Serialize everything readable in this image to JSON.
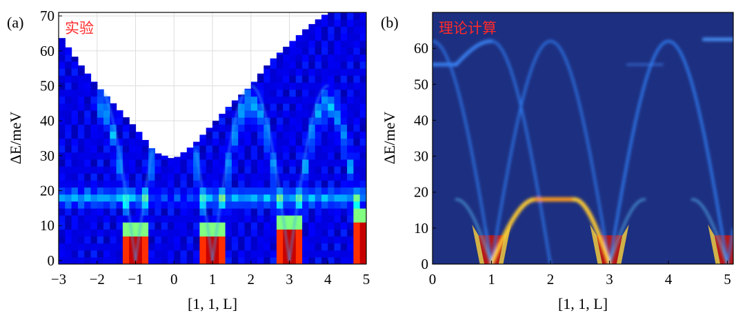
{
  "chart_data": [
    {
      "type": "heatmap",
      "panel_label": "(a)",
      "annotation": "实验",
      "xlabel": "[1, 1, L]",
      "ylabel": "ΔE/meV",
      "xlim": [
        -3,
        5
      ],
      "ylim": [
        -1,
        71
      ],
      "xticks": [
        "−3",
        "−2",
        "−1",
        "0",
        "1",
        "2",
        "3",
        "4",
        "5"
      ],
      "yticks": [
        "0",
        "10",
        "20",
        "30",
        "40",
        "50",
        "60",
        "70"
      ],
      "grid": true,
      "colormap": "jet",
      "intensity_peaks": [
        {
          "L": -1,
          "E_max": 8
        },
        {
          "L": 1,
          "E_max": 8
        },
        {
          "L": 3,
          "E_max": 10
        },
        {
          "L": 5,
          "E_max": 12
        }
      ],
      "dispersion_max_E": 50,
      "flat_band_E": 18,
      "coverage_upper_edge": [
        {
          "L": -3,
          "E": 65
        },
        {
          "L": -2.5,
          "E": 57
        },
        {
          "L": -2,
          "E": 50
        },
        {
          "L": -1.5,
          "E": 44
        },
        {
          "L": -1,
          "E": 38
        },
        {
          "L": -0.5,
          "E": 31
        },
        {
          "L": 0,
          "E": 29
        },
        {
          "L": 0.5,
          "E": 33
        },
        {
          "L": 1,
          "E": 39
        },
        {
          "L": 1.5,
          "E": 45
        },
        {
          "L": 2,
          "E": 50
        },
        {
          "L": 2.5,
          "E": 57
        },
        {
          "L": 3,
          "E": 62
        },
        {
          "L": 3.5,
          "E": 67
        },
        {
          "L": 4,
          "E": 71
        },
        {
          "L": 5,
          "E": 71
        }
      ]
    },
    {
      "type": "heatmap",
      "panel_label": "(b)",
      "annotation": "理论计算",
      "xlabel": "[1, 1, L]",
      "ylabel": "ΔE/meV",
      "xlim": [
        0,
        5.1
      ],
      "ylim": [
        0,
        70
      ],
      "xticks": [
        "0",
        "1",
        "2",
        "3",
        "4",
        "5"
      ],
      "yticks": [
        "0",
        "10",
        "20",
        "30",
        "40",
        "50",
        "60"
      ],
      "grid": false,
      "colormap": "jet",
      "intensity_peaks": [
        {
          "L": 1,
          "E_max": 8
        },
        {
          "L": 3,
          "E_max": 8
        },
        {
          "L": 5,
          "E_max": 8
        }
      ],
      "dispersion_max_E": 62,
      "flat_band_E": 18
    }
  ]
}
